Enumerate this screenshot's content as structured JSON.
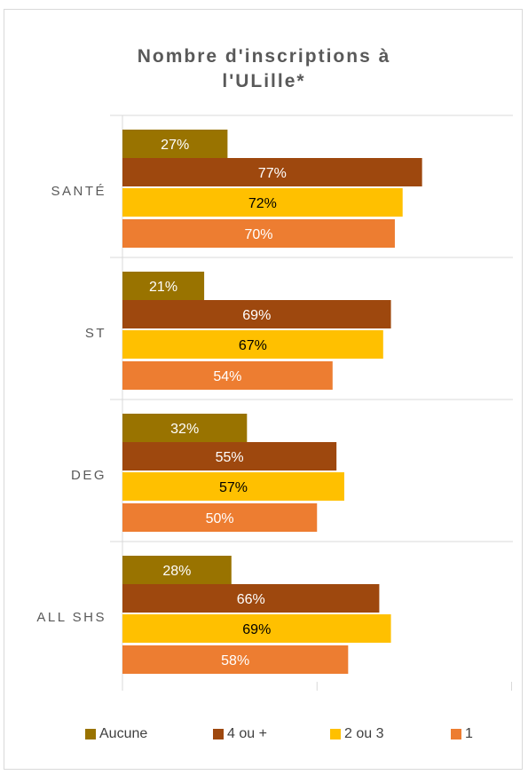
{
  "title_lines": [
    "Nombre d'inscriptions à",
    "l'ULille*"
  ],
  "chart_data": {
    "type": "bar",
    "orientation": "horizontal",
    "title": "Nombre d'inscriptions à l'ULille*",
    "categories": [
      "SANTÉ",
      "ST",
      "DEG",
      "ALL SHS"
    ],
    "series": [
      {
        "name": "Aucune",
        "color": "#997300",
        "label_color": "#ffffff",
        "values": [
          27,
          21,
          32,
          28
        ],
        "labels": [
          "27%",
          "21%",
          "32%",
          "28%"
        ]
      },
      {
        "name": "4 ou +",
        "color": "#9e480e",
        "label_color": "#ffffff",
        "values": [
          77,
          69,
          55,
          66
        ],
        "labels": [
          "77%",
          "69%",
          "55%",
          "66%"
        ]
      },
      {
        "name": "2 ou 3",
        "color": "#ffc000",
        "label_color": "#000000",
        "values": [
          72,
          67,
          57,
          69
        ],
        "labels": [
          "72%",
          "67%",
          "57%",
          "69%"
        ]
      },
      {
        "name": "1",
        "color": "#ed7d31",
        "label_color": "#ffffff",
        "values": [
          70,
          54,
          50,
          58
        ],
        "labels": [
          "70%",
          "54%",
          "50%",
          "58%"
        ]
      }
    ],
    "xlim": [
      0,
      100
    ],
    "grid": "vertical",
    "legend_position": "bottom"
  }
}
